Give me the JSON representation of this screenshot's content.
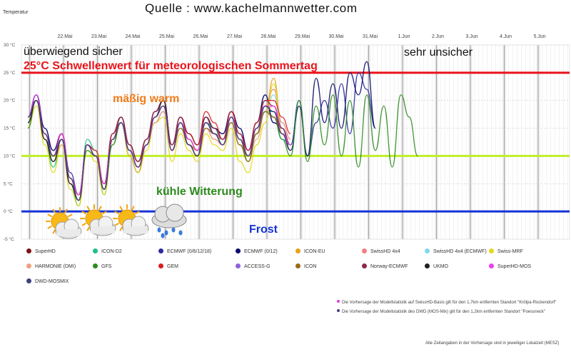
{
  "header": {
    "ylabel": "Temperatur",
    "source": "Quelle : www.kachelmannwetter.com"
  },
  "chart_data": {
    "type": "line",
    "ylabel": "Temperatur",
    "ylim": [
      -5,
      30
    ],
    "yticks": [
      "30 °C",
      "25 °C",
      "20 °C",
      "15 °C",
      "10 °C",
      "5 °C",
      "0 °C",
      "-5 °C"
    ],
    "xticks": [
      "22.Mai",
      "23.Mai",
      "24.Mai",
      "25.Mai",
      "26.Mai",
      "27.Mai",
      "28.Mai",
      "29.Mai",
      "30.Mai",
      "31.Mai",
      "1.Jun",
      "2.Jun",
      "3.Jun",
      "4.Jun",
      "5.Jun"
    ],
    "grid": true,
    "thresholds": [
      {
        "value": 25,
        "color": "#e8141c",
        "label": "25°C Schwellenwert für meteorologischen Sommertag"
      },
      {
        "value": 10,
        "color": "#bfef28",
        "label": ""
      },
      {
        "value": 0,
        "color": "#1432d6",
        "label": "Frost"
      }
    ],
    "annotations": [
      {
        "text": "überwiegend sicher",
        "color": "#111111"
      },
      {
        "text": "sehr unsicher",
        "color": "#111111"
      },
      {
        "text": "mäßig warm",
        "color": "#f07c1a"
      },
      {
        "text": "kühle Witterung",
        "color": "#2e8b1e"
      }
    ],
    "weather_icons": [
      "sun-behind-cloud",
      "sun-behind-cloud",
      "sun-behind-cloud",
      "rain-cloud"
    ],
    "series": [
      {
        "name": "SuperHD",
        "color": "#7a1418",
        "values": [
          17,
          20,
          14,
          10,
          14,
          6,
          2,
          12,
          10,
          4,
          13,
          16,
          10,
          7,
          12,
          16,
          18,
          12,
          16,
          12,
          11,
          17,
          14,
          13,
          16,
          12,
          10,
          14,
          19,
          17,
          14,
          11
        ]
      },
      {
        "name": "ICON-D2",
        "color": "#1dbf84",
        "values": [
          16,
          21,
          13,
          8,
          13,
          5,
          1,
          13,
          11,
          3,
          12,
          17,
          11,
          8,
          12,
          17,
          19,
          11,
          15,
          13,
          11,
          16,
          15,
          12,
          17,
          13,
          10,
          15,
          18,
          18,
          13,
          12
        ]
      },
      {
        "name": "ECMWF (0/6/12/18)",
        "color": "#2b2ba0",
        "values": [
          17,
          21,
          15,
          11,
          14,
          7,
          3,
          12,
          10,
          5,
          14,
          17,
          12,
          9,
          13,
          18,
          20,
          12,
          17,
          14,
          12,
          17,
          15,
          14,
          18,
          15,
          11,
          16,
          21,
          16,
          15,
          12,
          20,
          10,
          16,
          20,
          15,
          23,
          14,
          25,
          22,
          15
        ]
      },
      {
        "name": "ECMWF (0/12)",
        "color": "#0b0b6e",
        "values": [
          17,
          21,
          15,
          11,
          14,
          6,
          3,
          12,
          10,
          5,
          14,
          17,
          12,
          9,
          13,
          18,
          20,
          12,
          17,
          14,
          12,
          17,
          15,
          14,
          18,
          15,
          11,
          16,
          21,
          16,
          15,
          11,
          19,
          10,
          24,
          16,
          23,
          15,
          25,
          21,
          27,
          15
        ]
      },
      {
        "name": "ICON-EU",
        "color": "#e6a21a",
        "values": [
          16,
          20,
          13,
          9,
          12,
          6,
          2,
          12,
          11,
          4,
          13,
          16,
          11,
          8,
          12,
          17,
          19,
          11,
          15,
          12,
          11,
          15,
          13,
          12,
          16,
          12,
          10,
          14,
          18,
          24,
          15,
          12
        ]
      },
      {
        "name": "SwissHD 4x4",
        "color": "#f08080",
        "values": [
          17,
          20,
          14,
          10,
          13,
          6,
          3,
          12,
          10,
          5,
          13,
          16,
          11,
          8,
          13,
          17,
          19,
          12,
          16,
          13,
          11,
          16,
          14,
          13,
          17,
          13,
          10,
          15,
          19,
          22,
          16,
          13
        ]
      },
      {
        "name": "SwissHD 4x4 (ECMWF)",
        "color": "#7fd8f0",
        "values": [
          16,
          20,
          13,
          9,
          13,
          5,
          2,
          12,
          11,
          4,
          13,
          16,
          11,
          8,
          12,
          16,
          18,
          11,
          15,
          12,
          10,
          15,
          14,
          12,
          16,
          12,
          9,
          14,
          18,
          21,
          15,
          12
        ]
      },
      {
        "name": "Swiss-MRF",
        "color": "#e6d81a",
        "values": [
          15,
          19,
          12,
          7,
          12,
          4,
          1,
          11,
          9,
          3,
          12,
          16,
          10,
          7,
          11,
          16,
          17,
          9,
          14,
          11,
          9,
          14,
          12,
          11,
          15,
          9,
          7,
          12,
          16,
          23,
          14,
          11
        ]
      },
      {
        "name": "HARMONIE (DMI)",
        "color": "#f0a080",
        "values": [
          16,
          20,
          13,
          9,
          12,
          5,
          2,
          12,
          10,
          4,
          13,
          16,
          11,
          8,
          12,
          16,
          18,
          11,
          15,
          12,
          10,
          15,
          13,
          12,
          16,
          12,
          9,
          13,
          18,
          19,
          14,
          12
        ]
      },
      {
        "name": "GFS",
        "color": "#2e8b1e",
        "values": [
          15,
          20,
          13,
          10,
          13,
          5,
          2,
          11,
          10,
          4,
          12,
          16,
          11,
          8,
          12,
          17,
          19,
          11,
          16,
          12,
          10,
          16,
          14,
          12,
          17,
          13,
          9,
          14,
          18,
          17,
          13,
          10,
          20,
          9,
          19,
          12,
          21,
          10,
          20,
          8,
          21,
          11,
          19,
          8,
          21,
          17,
          10
        ]
      },
      {
        "name": "GEM",
        "color": "#d81e1e",
        "values": [
          16,
          20,
          14,
          10,
          14,
          6,
          3,
          12,
          11,
          5,
          14,
          17,
          12,
          9,
          13,
          18,
          20,
          12,
          17,
          14,
          12,
          18,
          16,
          13,
          18,
          14,
          11,
          16,
          20,
          20,
          17,
          14
        ]
      },
      {
        "name": "ACCESS-G",
        "color": "#9060d8",
        "values": [
          16,
          20,
          13,
          9,
          13,
          5,
          2,
          12,
          10,
          4,
          13,
          16,
          11,
          8,
          12,
          17,
          19,
          11,
          16,
          12,
          10,
          16,
          14,
          12,
          17,
          13,
          10,
          15,
          19,
          18,
          15,
          12
        ]
      },
      {
        "name": "ICON",
        "color": "#9a6a1a",
        "values": [
          16,
          20,
          13,
          9,
          13,
          5,
          2,
          12,
          10,
          4,
          13,
          16,
          11,
          8,
          12,
          17,
          19,
          11,
          15,
          12,
          10,
          15,
          14,
          12,
          16,
          12,
          9,
          14,
          18,
          17,
          14,
          11
        ]
      },
      {
        "name": "Norway-ECMWF",
        "color": "#8a2a4a",
        "values": [
          17,
          20,
          14,
          10,
          14,
          6,
          3,
          12,
          10,
          5,
          13,
          17,
          12,
          9,
          13,
          18,
          20,
          12,
          17,
          13,
          11,
          17,
          15,
          13,
          17,
          14,
          10,
          15,
          20,
          19,
          15,
          12
        ]
      },
      {
        "name": "UKMO",
        "color": "#202020",
        "values": [
          16,
          20,
          13,
          9,
          13,
          5,
          2,
          12,
          10,
          4,
          13,
          16,
          11,
          8,
          12,
          17,
          20,
          11,
          16,
          12,
          10,
          16,
          14,
          12,
          17,
          13,
          10,
          15,
          19,
          18,
          14,
          11
        ]
      },
      {
        "name": "SuperHD-MOS",
        "color": "#f03cf0",
        "values": [
          17,
          21,
          14,
          10,
          14,
          6,
          3,
          12,
          10,
          5,
          13,
          16,
          11,
          8,
          12,
          17,
          19,
          11,
          16,
          13,
          11,
          16,
          14,
          12,
          17,
          13,
          10,
          15,
          19,
          19,
          14,
          12
        ]
      },
      {
        "name": "DWD-MOSMIX",
        "color": "#404080",
        "values": [
          17,
          20,
          14,
          10,
          13,
          6,
          2,
          12,
          10,
          4,
          13,
          16,
          11,
          8,
          12,
          17,
          19,
          11,
          16,
          12,
          10,
          16,
          14,
          12,
          17,
          13,
          10,
          15,
          19,
          18,
          14,
          11
        ]
      }
    ]
  },
  "footnotes": [
    {
      "text": "Die Vorhersage der Modellstatistik auf SwissHD-Basis gilt für den 1,7km entfernten Standort \"Krölpa-Rockendorf\"",
      "color": "#e43ce4"
    },
    {
      "text": "Die Vorhersage der Modellstatistik des DWD (MOS-Mix) gilt für den 1,2km entfernten Standort \"Poessneck\"",
      "color": "#404080"
    }
  ],
  "timezone_note": "Alle Zeitangaben in der Vorhersage sind in jeweiliger Lokalzeit (MESZ)"
}
